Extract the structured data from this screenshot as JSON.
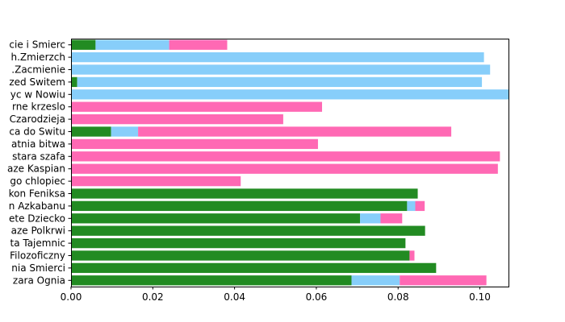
{
  "chart_data": {
    "type": "bar",
    "orientation": "horizontal",
    "stacked": true,
    "title": "",
    "xlabel": "",
    "ylabel": "",
    "xlim": [
      0,
      0.107
    ],
    "x_ticks": [
      "0.00",
      "0.02",
      "0.04",
      "0.06",
      "0.08",
      "0.10"
    ],
    "grid": false,
    "legend": "none",
    "categories": [
      "cie i Smierc",
      "h.Zmierzch",
      ".Zacmienie",
      "zed Switem",
      "yc w Nowiu",
      "rne krzeslo",
      "Czarodzieja",
      "ca do Switu",
      "atnia bitwa",
      "stara szafa",
      "aze Kaspian",
      "go chlopiec",
      "kon Feniksa",
      "n Azkabanu",
      "ete Dziecko",
      "aze Polkrwi",
      "ta Tajemnic",
      "Filozoficzny",
      "nia Smierci",
      "zara Ognia"
    ],
    "series": [
      {
        "color": "#228b22",
        "values": [
          0.006,
          0,
          0,
          0.0015,
          0,
          0,
          0,
          0.0098,
          0,
          0,
          0,
          0,
          0.0848,
          0.0822,
          0.0707,
          0.0866,
          0.0818,
          0.0828,
          0.0893,
          0.0686
        ]
      },
      {
        "color": "#87cefa",
        "values": [
          0.018,
          0.101,
          0.1025,
          0.099,
          0.107,
          0,
          0,
          0.0066,
          0,
          0,
          0,
          0,
          0,
          0.002,
          0.005,
          0,
          0,
          0,
          0,
          0.0118
        ]
      },
      {
        "color": "#ff69b4",
        "values": [
          0.0142,
          0,
          0,
          0,
          0,
          0.0614,
          0.0519,
          0.0766,
          0.0604,
          0.1049,
          0.1044,
          0.0415,
          0,
          0.0023,
          0.0053,
          0,
          0,
          0.0012,
          0,
          0.0212
        ]
      }
    ]
  }
}
